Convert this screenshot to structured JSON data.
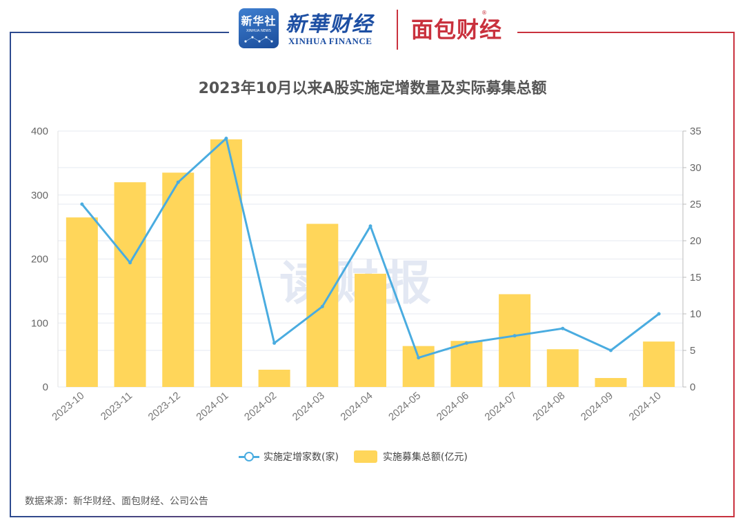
{
  "header": {
    "logo1_cn": "新华社",
    "logo1_en": "XINHUA NEWS",
    "brand_cn": "新華财经",
    "brand_en": "XINHUA FINANCE",
    "brand2": "面包财经",
    "brand2_mark": "®"
  },
  "watermark": "读财报",
  "source": "数据来源：新华财经、面包财经、公司公告",
  "colors": {
    "bar": "#ffd65a",
    "line": "#4aace0",
    "frame_left": "#2c4a8f",
    "frame_right": "#c9313d"
  },
  "chart_data": {
    "type": "bar",
    "title": "2023年10月以来A股实施定增数量及实际募集总额",
    "categories": [
      "2023-10",
      "2023-11",
      "2023-12",
      "2024-01",
      "2024-02",
      "2024-03",
      "2024-04",
      "2024-05",
      "2024-06",
      "2024-07",
      "2024-08",
      "2024-09",
      "2024-10"
    ],
    "left_axis": {
      "ylim": [
        0,
        400
      ],
      "ticks": [
        "0",
        "100",
        "200",
        "300",
        "400"
      ]
    },
    "right_axis": {
      "ylim": [
        0,
        35
      ],
      "ticks": [
        "0",
        "5",
        "10",
        "15",
        "20",
        "25",
        "30",
        "35"
      ]
    },
    "grid": true,
    "legend_position": "bottom",
    "series": [
      {
        "name": "实施定增家数(家)",
        "type": "line",
        "axis": "right",
        "values": [
          25,
          17,
          28,
          34,
          6,
          11,
          22,
          4,
          6,
          7,
          8,
          5,
          10
        ]
      },
      {
        "name": "实施募集总额(亿元)",
        "type": "bar",
        "axis": "left",
        "values": [
          265,
          320,
          335,
          387,
          27,
          255,
          177,
          64,
          72,
          145,
          59,
          14,
          71
        ]
      }
    ]
  }
}
